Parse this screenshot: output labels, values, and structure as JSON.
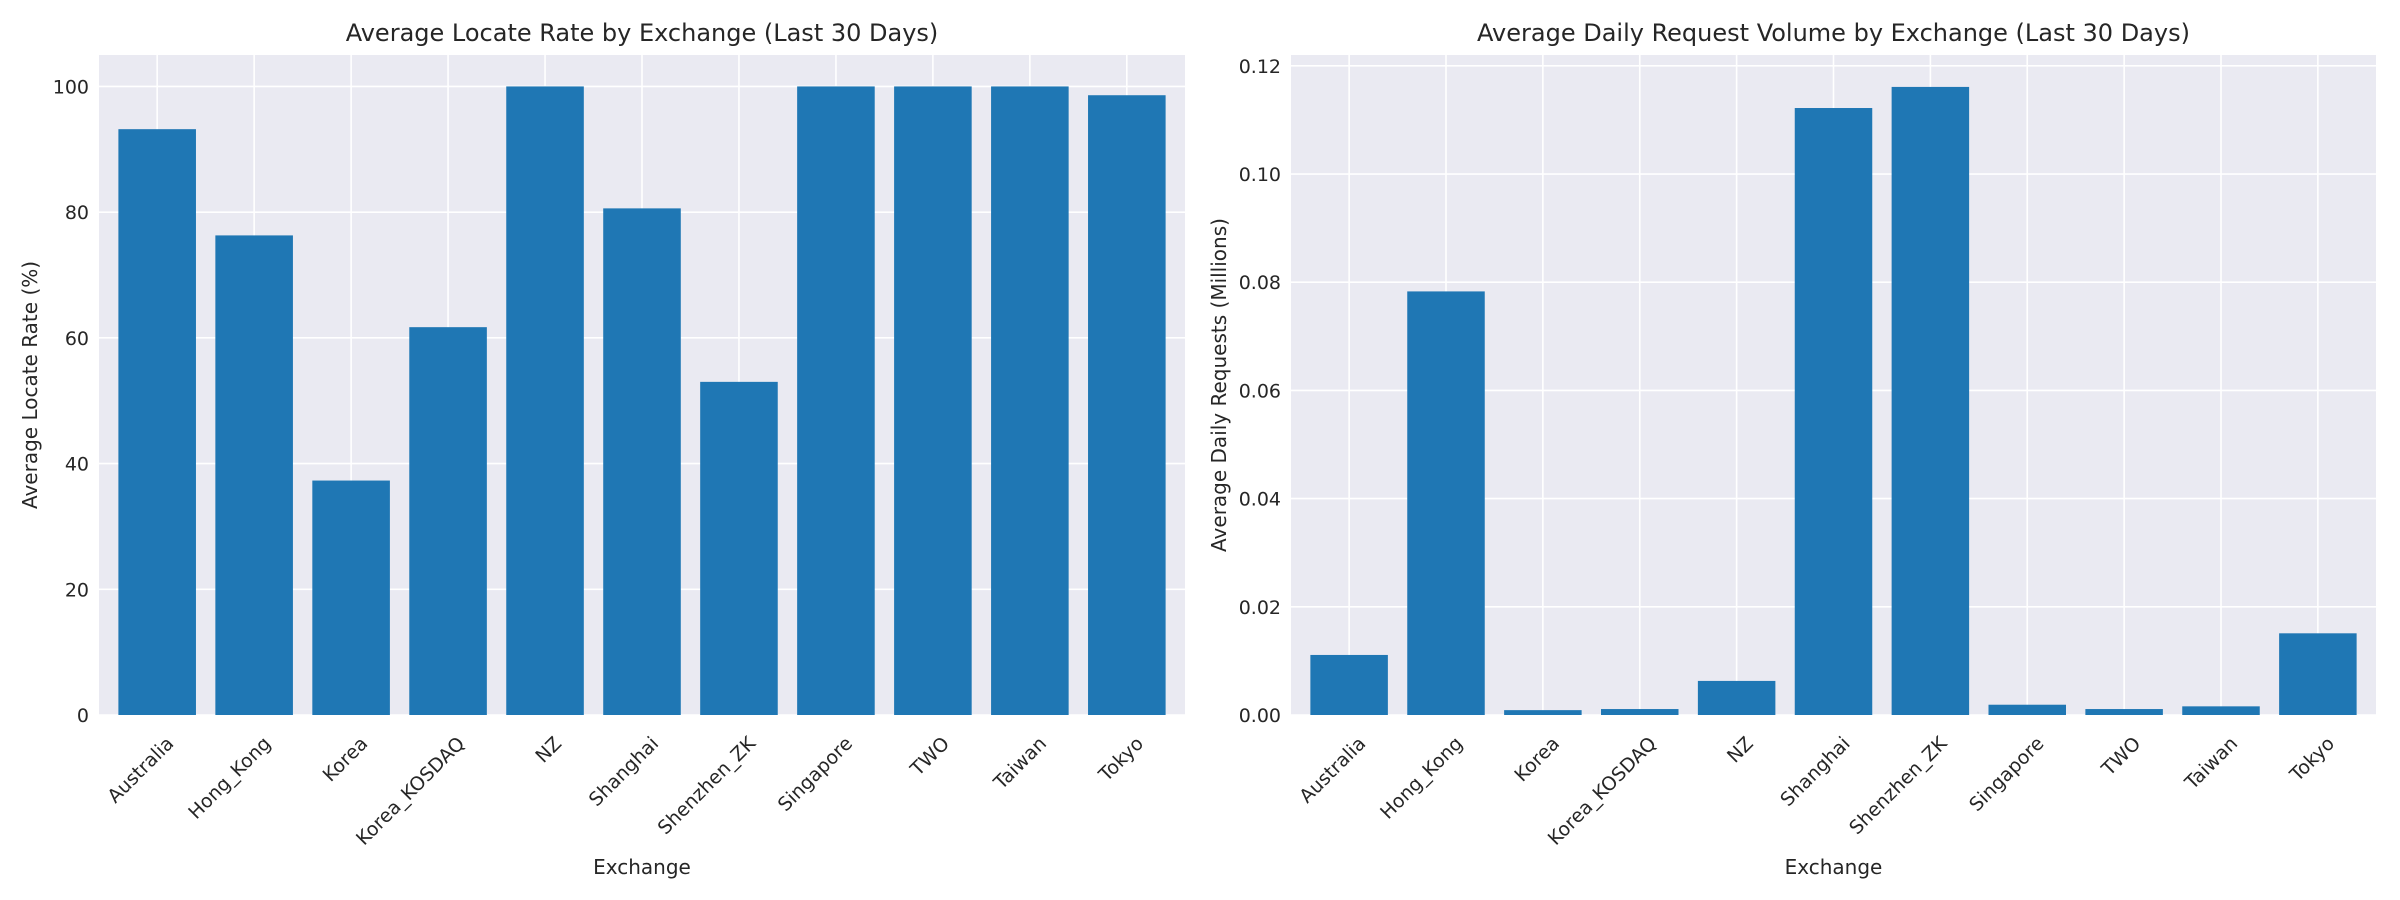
{
  "chart_data": [
    {
      "type": "bar",
      "title": "Average Locate Rate by Exchange (Last 30 Days)",
      "xlabel": "Exchange",
      "ylabel": "Average Locate Rate (%)",
      "categories": [
        "Australia",
        "Hong_Kong",
        "Korea",
        "Korea_KOSDAQ",
        "NZ",
        "Shanghai",
        "Shenzhen_ZK",
        "Singapore",
        "TWO",
        "Taiwan",
        "Tokyo"
      ],
      "values": [
        93.2,
        76.3,
        37.3,
        61.7,
        100.0,
        80.6,
        53.0,
        100.0,
        100.0,
        100.0,
        98.6
      ],
      "ylim": [
        0,
        105
      ],
      "yticks": [
        0,
        20,
        40,
        60,
        80,
        100
      ],
      "ytick_labels": [
        "0",
        "20",
        "40",
        "60",
        "80",
        "100"
      ],
      "grid": true,
      "color": "#1f77b4"
    },
    {
      "type": "bar",
      "title": "Average Daily Request Volume by Exchange (Last 30 Days)",
      "xlabel": "Exchange",
      "ylabel": "Average Daily Requests (Millions)",
      "categories": [
        "Australia",
        "Hong_Kong",
        "Korea",
        "Korea_KOSDAQ",
        "NZ",
        "Shanghai",
        "Shenzhen_ZK",
        "Singapore",
        "TWO",
        "Taiwan",
        "Tokyo"
      ],
      "values": [
        0.0111,
        0.0783,
        0.0009,
        0.0011,
        0.0063,
        0.1122,
        0.1161,
        0.0019,
        0.0011,
        0.0016,
        0.0151
      ],
      "ylim": [
        0,
        0.122
      ],
      "yticks": [
        0.0,
        0.02,
        0.04,
        0.06,
        0.08,
        0.1,
        0.12
      ],
      "ytick_labels": [
        "0.00",
        "0.02",
        "0.04",
        "0.06",
        "0.08",
        "0.10",
        "0.12"
      ],
      "grid": true,
      "color": "#1f77b4"
    }
  ]
}
